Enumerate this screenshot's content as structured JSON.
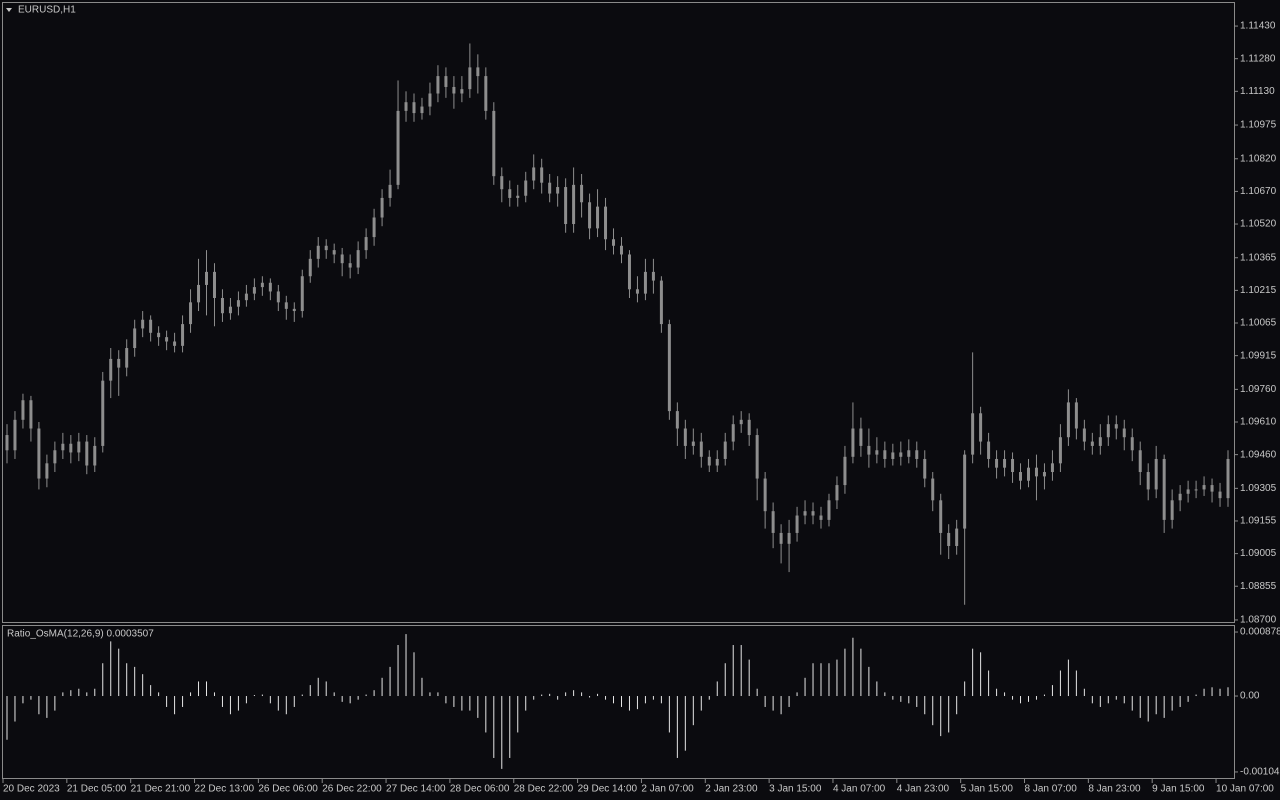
{
  "chart_data": [
    {
      "type": "candlestick",
      "title": "EURUSD,H1",
      "color": "#8e8e8e",
      "categories": [
        "20 Dec 2023",
        null,
        null,
        null,
        null,
        null,
        null,
        null,
        "21 Dec 05:00",
        null,
        null,
        null,
        null,
        null,
        null,
        null,
        "21 Dec 21:00",
        null,
        null,
        null,
        null,
        null,
        null,
        null,
        "22 Dec 13:00",
        null,
        null,
        null,
        null,
        null,
        null,
        null,
        "26 Dec 06:00",
        null,
        null,
        null,
        null,
        null,
        null,
        null,
        "26 Dec 22:00",
        null,
        null,
        null,
        null,
        null,
        null,
        null,
        "27 Dec 14:00",
        null,
        null,
        null,
        null,
        null,
        null,
        null,
        "28 Dec 06:00",
        null,
        null,
        null,
        null,
        null,
        null,
        null,
        "28 Dec 22:00",
        null,
        null,
        null,
        null,
        null,
        null,
        null,
        "29 Dec 14:00",
        null,
        null,
        null,
        null,
        null,
        null,
        null,
        "2 Jan 07:00",
        null,
        null,
        null,
        null,
        null,
        null,
        null,
        "2 Jan 23:00",
        null,
        null,
        null,
        null,
        null,
        null,
        null,
        "3 Jan 15:00",
        null,
        null,
        null,
        null,
        null,
        null,
        null,
        "4 Jan 07:00",
        null,
        null,
        null,
        null,
        null,
        null,
        null,
        "4 Jan 23:00",
        null,
        null,
        null,
        null,
        null,
        null,
        null,
        "5 Jan 15:00",
        null,
        null,
        null,
        null,
        null,
        null,
        null,
        "8 Jan 07:00",
        null,
        null,
        null,
        null,
        null,
        null,
        null,
        "8 Jan 23:00",
        null,
        null,
        null,
        null,
        null,
        null,
        null,
        "9 Jan 15:00",
        null,
        null,
        null,
        null,
        null,
        null,
        null,
        "10 Jan 07:00",
        null
      ],
      "open": [
        1.0955,
        1.0948,
        1.0962,
        1.0971,
        1.0958,
        1.0935,
        1.0942,
        1.0948,
        1.0951,
        1.0947,
        1.0952,
        1.0941,
        1.095,
        1.098,
        1.099,
        1.0986,
        1.0995,
        1.1004,
        1.1008,
        1.1002,
        1.1,
        1.0998,
        1.0996,
        1.1006,
        1.1016,
        1.1024,
        1.103,
        1.1018,
        1.1011,
        1.1014,
        1.1017,
        1.102,
        1.1023,
        1.1025,
        1.1021,
        1.1016,
        1.1013,
        1.1012,
        1.1028,
        1.1036,
        1.1042,
        1.104,
        1.1038,
        1.1034,
        1.1032,
        1.104,
        1.1046,
        1.1055,
        1.1064,
        1.107,
        1.1104,
        1.1108,
        1.1103,
        1.1106,
        1.1112,
        1.112,
        1.1115,
        1.1112,
        1.1114,
        1.1124,
        1.112,
        1.1104,
        1.1074,
        1.1068,
        1.1064,
        1.1065,
        1.1072,
        1.1078,
        1.1071,
        1.1066,
        1.1069,
        1.1052,
        1.107,
        1.1062,
        1.105,
        1.106,
        1.1045,
        1.1042,
        1.1038,
        1.1022,
        1.102,
        1.103,
        1.1026,
        1.1006,
        1.0966,
        1.0958,
        1.095,
        1.0952,
        1.0945,
        1.0941,
        1.0944,
        1.0952,
        1.096,
        1.0962,
        1.0955,
        1.0935,
        1.092,
        1.091,
        1.0905,
        1.091,
        1.0918,
        1.092,
        1.0918,
        1.0916,
        1.0925,
        1.0932,
        1.0945,
        1.0958,
        1.095,
        1.0946,
        1.0948,
        1.0944,
        1.0947,
        1.0945,
        1.0948,
        1.0944,
        1.0935,
        1.0925,
        1.091,
        1.0904,
        1.0912,
        1.0946,
        1.0965,
        1.0952,
        1.0944,
        1.094,
        1.0944,
        1.0938,
        1.0934,
        1.094,
        1.0936,
        1.0938,
        1.0942,
        1.0954,
        1.097,
        1.0958,
        1.0952,
        1.095,
        1.0954,
        1.096,
        1.0958,
        1.0954,
        1.0948,
        1.0938,
        1.093,
        1.0944,
        1.0916,
        1.0925,
        1.0928,
        1.093,
        1.093,
        1.0932,
        1.0929,
        1.0926
      ],
      "high": [
        1.096,
        1.0966,
        1.0974,
        1.0973,
        1.0961,
        1.0946,
        1.0952,
        1.0956,
        1.0955,
        1.0956,
        1.0955,
        1.0954,
        1.0984,
        1.0995,
        1.0994,
        1.0999,
        1.1008,
        1.1012,
        1.101,
        1.1005,
        1.1003,
        1.1002,
        1.101,
        1.1022,
        1.1036,
        1.104,
        1.1034,
        1.1022,
        1.1018,
        1.1021,
        1.1024,
        1.1027,
        1.1028,
        1.1027,
        1.1024,
        1.1019,
        1.1016,
        1.1031,
        1.104,
        1.1046,
        1.1045,
        1.1043,
        1.1041,
        1.1038,
        1.1044,
        1.105,
        1.1059,
        1.1068,
        1.1077,
        1.1118,
        1.1113,
        1.1112,
        1.111,
        1.1117,
        1.1125,
        1.1124,
        1.112,
        1.112,
        1.1135,
        1.113,
        1.1124,
        1.1108,
        1.1078,
        1.1072,
        1.107,
        1.1076,
        1.1084,
        1.1082,
        1.1075,
        1.1074,
        1.1073,
        1.1078,
        1.1075,
        1.1066,
        1.1068,
        1.1064,
        1.105,
        1.1046,
        1.104,
        1.1028,
        1.1036,
        1.1036,
        1.1028,
        1.1008,
        1.097,
        1.0962,
        1.0958,
        1.0956,
        1.0948,
        1.0948,
        1.0956,
        1.0964,
        1.0966,
        1.0965,
        1.0958,
        1.0938,
        1.0924,
        1.0914,
        1.0916,
        1.0922,
        1.0925,
        1.0924,
        1.0922,
        1.0928,
        1.0936,
        1.095,
        1.097,
        1.0963,
        1.0958,
        1.0954,
        1.0952,
        1.0951,
        1.0952,
        1.0953,
        1.0952,
        1.0948,
        1.0938,
        1.0928,
        1.0914,
        1.0916,
        1.0948,
        1.0993,
        1.0968,
        1.0956,
        1.0948,
        1.0948,
        1.0947,
        1.0942,
        1.0944,
        1.0946,
        1.0942,
        1.0948,
        1.096,
        1.0976,
        1.0972,
        1.0962,
        1.0956,
        1.096,
        1.0964,
        1.0964,
        1.0962,
        1.0958,
        1.0952,
        1.0942,
        1.095,
        1.0946,
        1.093,
        1.0932,
        1.0934,
        1.0934,
        1.0936,
        1.0935,
        1.0933,
        1.0948
      ],
      "low": [
        1.0942,
        1.0944,
        1.0958,
        1.0952,
        1.093,
        1.0931,
        1.0938,
        1.0944,
        1.0942,
        1.0943,
        1.0937,
        1.0938,
        1.0947,
        1.0972,
        1.0973,
        1.0982,
        1.0991,
        1.1,
        1.0998,
        1.0996,
        1.0994,
        1.0993,
        1.0993,
        1.1002,
        1.1012,
        1.101,
        1.1005,
        1.1007,
        1.1008,
        1.101,
        1.1014,
        1.1017,
        1.1019,
        1.1017,
        1.1012,
        1.1008,
        1.1007,
        1.1009,
        1.1025,
        1.1032,
        1.1036,
        1.1034,
        1.1028,
        1.1027,
        1.1029,
        1.1036,
        1.1042,
        1.1051,
        1.106,
        1.1068,
        1.1099,
        1.1099,
        1.11,
        1.1102,
        1.1108,
        1.111,
        1.1105,
        1.1108,
        1.111,
        1.1112,
        1.11,
        1.107,
        1.1062,
        1.106,
        1.106,
        1.1062,
        1.1068,
        1.1066,
        1.1062,
        1.106,
        1.1048,
        1.1048,
        1.1055,
        1.1045,
        1.1046,
        1.104,
        1.1038,
        1.1034,
        1.1018,
        1.1016,
        1.1017,
        1.102,
        1.1002,
        1.0962,
        1.095,
        1.0944,
        1.0946,
        1.094,
        1.0938,
        1.0938,
        1.0941,
        1.0948,
        1.0956,
        1.095,
        1.0925,
        1.0912,
        1.0903,
        1.0896,
        1.0892,
        1.0906,
        1.0914,
        1.0914,
        1.0912,
        1.0913,
        1.0921,
        1.0928,
        1.0942,
        1.0945,
        1.094,
        1.0942,
        1.094,
        1.0941,
        1.0941,
        1.0942,
        1.094,
        1.0931,
        1.092,
        1.09,
        1.0898,
        1.09,
        1.0877,
        1.0942,
        1.0946,
        1.094,
        1.0935,
        1.0936,
        1.0933,
        1.093,
        1.0931,
        1.0925,
        1.093,
        1.0934,
        1.0938,
        1.095,
        1.0953,
        1.0948,
        1.0946,
        1.0946,
        1.095,
        1.0953,
        1.0948,
        1.0943,
        1.0932,
        1.0925,
        1.0926,
        1.091,
        1.0912,
        1.092,
        1.0924,
        1.0926,
        1.0927,
        1.0924,
        1.0922,
        1.0922
      ],
      "close": [
        1.0948,
        1.0962,
        1.0971,
        1.0958,
        1.0935,
        1.0942,
        1.0948,
        1.0951,
        1.0947,
        1.0952,
        1.0941,
        1.095,
        1.098,
        1.099,
        1.0986,
        1.0995,
        1.1004,
        1.1008,
        1.1002,
        1.1,
        1.0998,
        1.0996,
        1.1006,
        1.1016,
        1.1024,
        1.103,
        1.1018,
        1.1011,
        1.1014,
        1.1017,
        1.102,
        1.1023,
        1.1025,
        1.1021,
        1.1016,
        1.1013,
        1.1012,
        1.1028,
        1.1036,
        1.1042,
        1.104,
        1.1038,
        1.1034,
        1.1032,
        1.104,
        1.1046,
        1.1055,
        1.1064,
        1.107,
        1.1104,
        1.1108,
        1.1103,
        1.1106,
        1.1112,
        1.112,
        1.1115,
        1.1112,
        1.1114,
        1.1124,
        1.112,
        1.1104,
        1.1074,
        1.1068,
        1.1064,
        1.1065,
        1.1072,
        1.1078,
        1.1071,
        1.1066,
        1.1069,
        1.1052,
        1.107,
        1.1062,
        1.105,
        1.106,
        1.1045,
        1.1042,
        1.1038,
        1.1022,
        1.102,
        1.103,
        1.1026,
        1.1006,
        1.0966,
        1.0958,
        1.095,
        1.0952,
        1.0945,
        1.0941,
        1.0944,
        1.0952,
        1.096,
        1.0962,
        1.0955,
        1.0935,
        1.092,
        1.091,
        1.0905,
        1.091,
        1.0918,
        1.092,
        1.0918,
        1.0916,
        1.0925,
        1.0932,
        1.0945,
        1.0958,
        1.095,
        1.0946,
        1.0948,
        1.0944,
        1.0947,
        1.0945,
        1.0948,
        1.0944,
        1.0935,
        1.0925,
        1.091,
        1.0904,
        1.0912,
        1.0946,
        1.0965,
        1.0952,
        1.0944,
        1.094,
        1.0944,
        1.0938,
        1.0934,
        1.094,
        1.0936,
        1.0938,
        1.0942,
        1.0954,
        1.097,
        1.0958,
        1.0952,
        1.095,
        1.0954,
        1.096,
        1.0958,
        1.0954,
        1.0948,
        1.0938,
        1.093,
        1.0944,
        1.0916,
        1.0925,
        1.0928,
        1.093,
        1.093,
        1.0932,
        1.0929,
        1.0926,
        1.0944
      ],
      "ylim": [
        1.08686,
        1.11536
      ],
      "yticks": [
        {
          "value": 1.087,
          "label": "1.08700"
        },
        1.08855,
        1.09005,
        1.09155,
        1.09305,
        {
          "value": 1.0946,
          "label": "1.09460"
        },
        {
          "value": 1.0961,
          "label": "1.09610"
        },
        {
          "value": 1.0976,
          "label": "1.09760"
        },
        1.09915,
        1.10065,
        1.10215,
        1.10365,
        {
          "value": 1.1052,
          "label": "1.10520"
        },
        {
          "value": 1.1067,
          "label": "1.10670"
        },
        {
          "value": 1.1082,
          "label": "1.10820"
        },
        1.10975,
        {
          "value": 1.1113,
          "label": "1.11130"
        },
        {
          "value": 1.1128,
          "label": "1.11280"
        },
        {
          "value": 1.1143,
          "label": "1.11430"
        }
      ]
    },
    {
      "type": "bar",
      "title": "Ratio_OsMA(12,26,9) 0.0003507",
      "color": "#e6e6e6",
      "values": [
        -0.0006,
        -0.00035,
        -0.0001,
        -5e-05,
        -0.00025,
        -0.0003,
        -0.0002,
        5e-05,
        8e-05,
        0.0001,
        5e-05,
        0.0001,
        0.00045,
        0.00075,
        0.00065,
        0.00045,
        0.0004,
        0.0003,
        0.00015,
        5e-05,
        -0.00015,
        -0.00025,
        -0.00015,
        5e-05,
        0.0002,
        0.0002,
        5e-05,
        -0.00015,
        -0.00025,
        -0.0002,
        -0.0001,
        0,
        2e-05,
        -0.0001,
        -0.0002,
        -0.00025,
        -0.00015,
        2e-05,
        0.00015,
        0.00025,
        0.0002,
        5e-05,
        -8e-05,
        -0.0001,
        -5e-05,
        2e-05,
        8e-05,
        0.00025,
        0.0004,
        0.0007,
        0.00085,
        0.0006,
        0.00025,
        5e-05,
        5e-05,
        -0.0001,
        -0.00015,
        -0.0002,
        -0.0002,
        -0.0003,
        -0.0005,
        -0.00085,
        -0.001,
        -0.00085,
        -0.0005,
        -0.0002,
        -5e-05,
        2e-05,
        3e-05,
        -5e-05,
        5e-05,
        8e-05,
        5e-05,
        -2e-05,
        3e-05,
        -5e-05,
        -0.0001,
        -0.00015,
        -0.0002,
        -0.00018,
        -0.0001,
        -5e-05,
        -0.0001,
        -0.0005,
        -0.00085,
        -0.00075,
        -0.0004,
        -0.0002,
        -5e-05,
        0.0002,
        0.00045,
        0.0007,
        0.0007,
        0.0005,
        0.0001,
        -0.00015,
        -0.0002,
        -0.00025,
        -0.00015,
        5e-05,
        0.00025,
        0.00045,
        0.00045,
        0.00045,
        0.0005,
        0.00065,
        0.0008,
        0.00065,
        0.0004,
        0.0002,
        5e-05,
        -5e-05,
        -8e-05,
        -0.0001,
        -0.00015,
        -0.00025,
        -0.0004,
        -0.00055,
        -0.0005,
        -0.00025,
        0.0002,
        0.00065,
        0.0006,
        0.00035,
        0.0001,
        5e-05,
        -5e-05,
        -0.0001,
        -8e-05,
        -5e-05,
        2e-05,
        0.00015,
        0.00035,
        0.0005,
        0.00035,
        0.0001,
        -0.0001,
        -0.00015,
        -0.0001,
        -5e-05,
        -0.0001,
        -0.0002,
        -0.0003,
        -0.00035,
        -0.00025,
        -0.0003,
        -0.0002,
        -0.00015,
        -8e-05,
        2e-05,
        0.0001,
        0.00012,
        0.0001,
        0.00012
      ],
      "ylim": [
        -0.001125,
        0.000961
      ],
      "yticks": [
        -0.001042,
        {
          "value": 0,
          "label": "0.00"
        },
        0.0008783
      ]
    }
  ]
}
